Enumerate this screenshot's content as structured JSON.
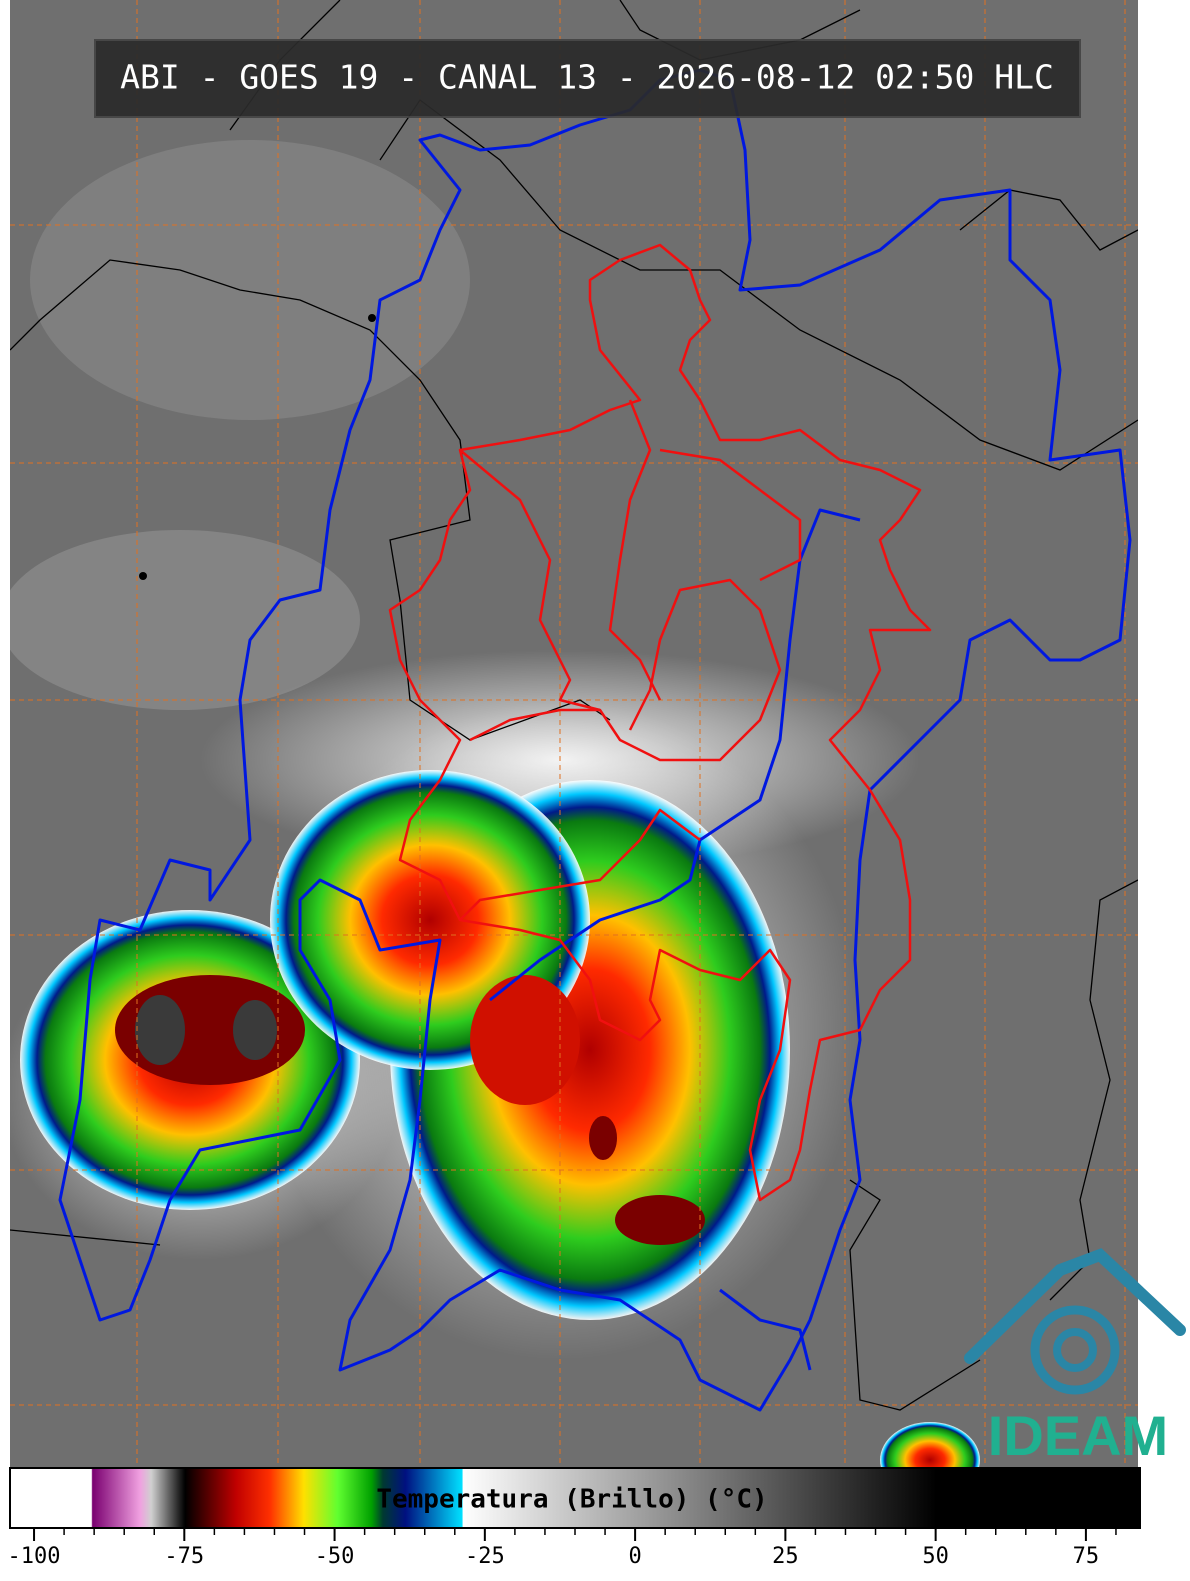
{
  "header": {
    "title": "ABI - GOES 19 - CANAL 13 - 2026-08-12 02:50 HLC"
  },
  "logo": {
    "text": "IDEAM"
  },
  "colorbar": {
    "label": "Temperatura (Brillo) (°C)",
    "xlim": [
      -104,
      84
    ],
    "xticks": [
      -100,
      -75,
      -50,
      -25,
      0,
      25,
      50,
      75
    ],
    "minor_xticks": [
      -95,
      -90,
      -85,
      -80,
      -70,
      -65,
      -60,
      -55,
      -45,
      -40,
      -35,
      -30,
      -20,
      -15,
      -10,
      -5,
      5,
      10,
      15,
      20,
      30,
      35,
      40,
      45,
      55,
      60,
      65,
      70,
      80
    ]
  }
}
